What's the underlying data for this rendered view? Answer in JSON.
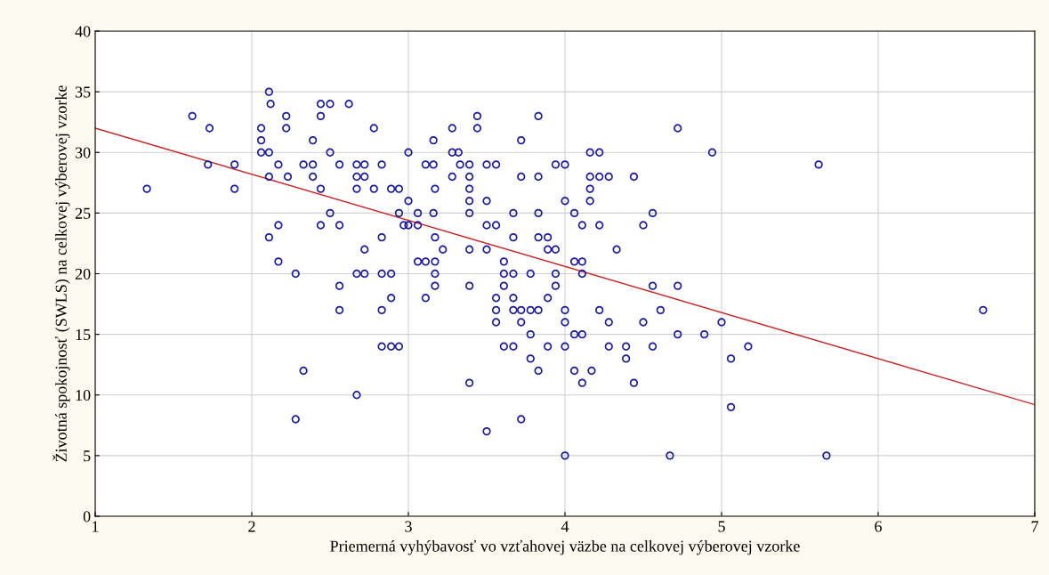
{
  "chart_data": {
    "type": "scatter",
    "xlabel": "Priemerná vyhýbavosť vo vzťahovej väzbe na celkovej výberovej vzorke",
    "ylabel": "Životná spokojnosť (SWLS) na celkovej výberovej vzorke",
    "xlim": [
      1,
      7
    ],
    "ylim": [
      0,
      40
    ],
    "xticks": [
      1,
      2,
      3,
      4,
      5,
      6,
      7
    ],
    "yticks": [
      0,
      5,
      10,
      15,
      20,
      25,
      30,
      35,
      40
    ],
    "grid": true,
    "marker": "circle",
    "series": [
      {
        "color": "#1a1aa0",
        "x": [
          2.11,
          2.12,
          2.44,
          2.5,
          2.62,
          1.62,
          2.22,
          2.44,
          3.44,
          3.83,
          1.73,
          2.06,
          2.22,
          2.78,
          3.28,
          3.44,
          4.72,
          2.06,
          2.39,
          3.16,
          3.72,
          2.06,
          2.11,
          2.5,
          3.0,
          3.28,
          3.32,
          4.16,
          4.22,
          4.94,
          1.72,
          1.89,
          2.17,
          2.33,
          2.39,
          2.56,
          2.67,
          2.72,
          2.83,
          3.11,
          3.16,
          3.33,
          3.39,
          3.5,
          3.56,
          3.94,
          4.0,
          5.62,
          2.11,
          2.23,
          2.39,
          2.67,
          2.72,
          3.28,
          3.39,
          3.72,
          3.83,
          4.16,
          4.22,
          4.28,
          4.44,
          1.33,
          1.89,
          2.44,
          2.67,
          2.78,
          2.89,
          2.94,
          3.17,
          3.39,
          4.16,
          3.0,
          3.39,
          3.5,
          4.0,
          4.16,
          2.5,
          2.94,
          3.06,
          3.16,
          3.39,
          3.67,
          3.83,
          4.06,
          4.56,
          2.17,
          2.44,
          2.56,
          2.97,
          3.0,
          3.06,
          3.5,
          3.56,
          4.11,
          4.22,
          4.5,
          2.11,
          2.83,
          3.17,
          3.67,
          3.83,
          3.89,
          2.72,
          3.22,
          3.39,
          3.5,
          3.89,
          3.94,
          4.33,
          2.17,
          3.06,
          3.11,
          3.17,
          3.61,
          4.06,
          4.11,
          2.28,
          2.67,
          2.72,
          2.83,
          2.89,
          3.17,
          3.61,
          3.67,
          3.78,
          3.94,
          4.11,
          2.56,
          3.17,
          3.39,
          3.61,
          3.94,
          4.56,
          4.72,
          2.89,
          3.11,
          3.56,
          3.67,
          3.89,
          2.56,
          2.83,
          3.56,
          3.67,
          3.72,
          3.78,
          3.83,
          4.0,
          4.22,
          4.61,
          6.67,
          3.56,
          3.72,
          4.0,
          4.28,
          4.5,
          5.0,
          3.78,
          4.06,
          4.11,
          4.72,
          4.89,
          2.83,
          2.89,
          2.94,
          3.61,
          3.67,
          3.89,
          4.0,
          4.28,
          4.39,
          4.56,
          5.17,
          3.78,
          4.39,
          5.06,
          2.33,
          3.83,
          4.06,
          4.17,
          3.39,
          4.11,
          4.44,
          2.67,
          5.06,
          2.28,
          3.72,
          3.5,
          4.0,
          4.67,
          5.67
        ],
        "values": [
          35,
          34,
          34,
          34,
          34,
          33,
          33,
          33,
          33,
          33,
          32,
          32,
          32,
          32,
          32,
          32,
          32,
          31,
          31,
          31,
          31,
          30,
          30,
          30,
          30,
          30,
          30,
          30,
          30,
          30,
          29,
          29,
          29,
          29,
          29,
          29,
          29,
          29,
          29,
          29,
          29,
          29,
          29,
          29,
          29,
          29,
          29,
          29,
          28,
          28,
          28,
          28,
          28,
          28,
          28,
          28,
          28,
          28,
          28,
          28,
          28,
          27,
          27,
          27,
          27,
          27,
          27,
          27,
          27,
          27,
          27,
          26,
          26,
          26,
          26,
          26,
          25,
          25,
          25,
          25,
          25,
          25,
          25,
          25,
          25,
          24,
          24,
          24,
          24,
          24,
          24,
          24,
          24,
          24,
          24,
          24,
          23,
          23,
          23,
          23,
          23,
          23,
          22,
          22,
          22,
          22,
          22,
          22,
          22,
          21,
          21,
          21,
          21,
          21,
          21,
          21,
          20,
          20,
          20,
          20,
          20,
          20,
          20,
          20,
          20,
          20,
          20,
          19,
          19,
          19,
          19,
          19,
          19,
          19,
          18,
          18,
          18,
          18,
          18,
          17,
          17,
          17,
          17,
          17,
          17,
          17,
          17,
          17,
          17,
          17,
          16,
          16,
          16,
          16,
          16,
          16,
          15,
          15,
          15,
          15,
          15,
          14,
          14,
          14,
          14,
          14,
          14,
          14,
          14,
          14,
          14,
          14,
          13,
          13,
          13,
          12,
          12,
          12,
          12,
          11,
          11,
          11,
          10,
          9,
          8,
          8,
          7,
          5,
          5,
          5
        ]
      },
      {
        "type": "line",
        "color": "#cc2222",
        "x": [
          1,
          7
        ],
        "values": [
          32,
          9.2
        ],
        "marker": "none",
        "line_style": "solid"
      }
    ]
  }
}
